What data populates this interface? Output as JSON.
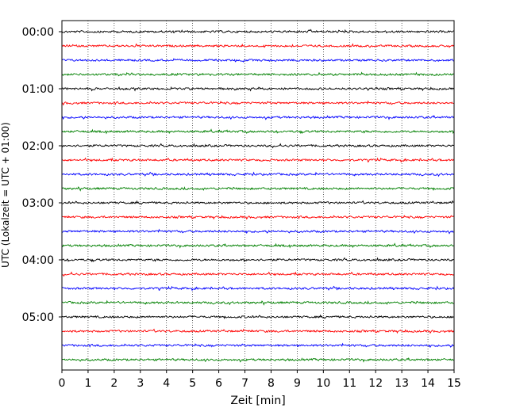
{
  "chart_data": {
    "type": "line",
    "title": "",
    "xlabel": "Zeit  [min]",
    "ylabel": "UTC (Lokalzeit = UTC + 01:00)",
    "xlim": [
      0,
      15
    ],
    "xticks": [
      "0",
      "1",
      "2",
      "3",
      "4",
      "5",
      "6",
      "7",
      "8",
      "9",
      "10",
      "11",
      "12",
      "13",
      "14",
      "15"
    ],
    "yticks": [
      "00:00",
      "01:00",
      "02:00",
      "03:00",
      "04:00",
      "05:00"
    ],
    "grid": "vertical-dotted",
    "trace_colors": [
      "#000000",
      "#ff0000",
      "#0000ff",
      "#008000"
    ],
    "trace_count": 24,
    "minutes_per_trace": 15
  }
}
